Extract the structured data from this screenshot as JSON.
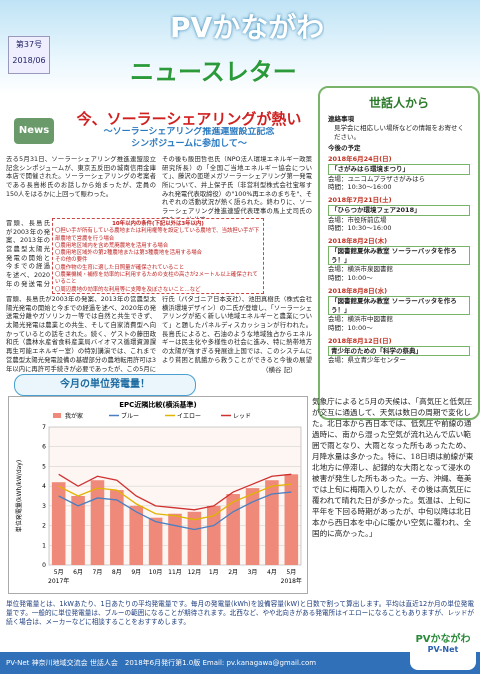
{
  "header": {
    "title": "PVかながわ",
    "issue": "第37号",
    "date": "2018/06",
    "subtitle": "ニュースレター"
  },
  "article": {
    "badge": "News",
    "headline": "今、ソーラーシェアリングが熱い",
    "subheadline": [
      "～ソーラーシェアリング推進連盟設立記念",
      "シンポジュームに参加して～"
    ],
    "col1": "去る5月31日、ソーラーシェアリング推進連盟設立記念シンポジュームが、東京五反田の城南信用金庫本店で開催された。ソーラーシェアリングの考案者である長島彬氏のお話しから始まったが、定員の150人をはるかに上回って賑わった。",
    "col2": "その後も飯田哲也氏（NPO法人環境エネルギー政策研究所長）の「全国ご当地エネルギー協会について」、藤沢の匝瑳メガソーラーシェアリング第一発電所について、井上保子氏（非営利型株式会社宝塚すみれ発電代表取締役）の\"100%再エネのまちを\"、それぞれの活動状況が熱く語られた。終わりに、ソーラーシェアリング推進連盟代表理事の馬上丈司氏の閉会で、辻井隆",
    "col3": "冒頭、長島氏が2003年の発案、2013年の営農型太陽光発電の開始と今までの経過を述べ、2020年の発送電分離やガソリンカー等では自然と共生できず、太陽光発電は農業との共生、そして自家消費型へ向かっているとの話をされた。続く、ゲストの藤田政和氏（農林水産省食料産業局バイオマス循環資源課再生可能エネルギー室）の特別講演では、これまで営農型太陽光発電設備の基礎部分の農地転用許可は3年以内に再許可手続きが必要であったが、この5月に従来要件に加え、一定条件（表参照）を満たせば10年以内へと大幅に緩和された旨の話があった。",
    "col4": "行氏（パタゴニア日本支社）、池田真樹氏（株式会社横浜環境デザイン）の二氏が登壇し、「ソーラーシェアリングが拓く新しい地域エネルギーと農業について」と題したパネルディスカッションが行われた。長島氏によると、石油のような地域独占からエネルギーは民主化や多様性の社会に進み、特に熱帯地方の太陽が強すぎる発展途上国では、このシステムにより貧困と飢餓から救うことができると今後の展望が語られた。",
    "signature": "（横谷 記）",
    "box": {
      "title": "10年以内の条件(下記以外は3年以内)",
      "items": [
        "〇担い手が所有している農地または利用権等を設定している農地で、当該担い手が下部農地で営農を行う場合",
        "〇農用地区域内を含め荒廃農地を活用する場合",
        "〇農用地区域外の第2種農地または第3種農地を活用する場合",
        "その他の要件",
        "〇農作物の生育に適した日照量が確保されていること",
        "〇農業機械・補修を効率的に利用するための支柱の高さが2メートル以上確保されていること",
        "〇周辺農地の効率的な利用等に支障を及ぼさないこと…など"
      ]
    }
  },
  "sidebar": {
    "title": "世話人から",
    "notice_title": "連絡事項",
    "notice": "見学会に相応しい場所などの情報をお寄せください。",
    "schedule_title": "今後の予定",
    "events": [
      {
        "date": "2018年6月24日(日)",
        "name": "「さがみはら環境まつり」",
        "place": "会場：ユニコムプラザさがみはら",
        "time": "時間：10:30～16:00"
      },
      {
        "date": "2018年7月21日(土)",
        "name": "「ひらつか環境フェア2018」",
        "place": "会場：市役所前広場",
        "time": "時間：10:30～16:00"
      },
      {
        "date": "2018年8月2日(木)",
        "name": "「図書館夏休み教室 ソーラーバッタを作ろう！」",
        "place": "会場：横浜市泉図書館",
        "time": "時間：10:00～"
      },
      {
        "date": "2018年8月8日(水)",
        "name": "「図書館夏休み教室 ソーラーバッタを作ろう！」",
        "place": "会場：横浜市中図書館",
        "time": "時間：10:00～"
      },
      {
        "date": "2018年8月12日(日)",
        "name": "青少年のための「科学の祭典」",
        "place": "会場：県立青少年センター"
      }
    ]
  },
  "monthly": {
    "heading": "今月の単位発電量！",
    "commentary": "気象庁によると5月の天候は、「高気圧と低気圧が交互に通過して、天気は数日の周期で変化した。北日本から西日本では、低気圧や前線の通過時に、南から湿った空気が流れ込んで広い範囲で雨となり、大雨となった所もあったため、月降水量は多かった。特に、18日頃は前線が東北地方に停滞し、記録的な大雨となって浸水の被害が発生した所もあった。一方、沖縄、奄美では上旬に梅雨入りしたが、その後は高気圧に覆われて晴れた日が多かった。気温は、上旬に平年を下回る時期があったが、中旬以降は北日本から西日本を中心に暖かい空気に覆われ、全国的に高かった。」",
    "footnote": "単位発電量とは、1kWあたり、1日あたりの平均発電量です。毎月の発電量(kWh)を設備容量(kW)と日数で割って算出します。平均は直近12か月の単位発電量です。一般的に単位発電量は、ブルーの範囲になることが期待されます。北西など、やや北向きがある発電所はイエローになることもありますが、レッドが続く場合は、メーカーなどに相談することをおすすめします。"
  },
  "chart_data": {
    "type": "bar",
    "title": "EPC近隣比較(横浜基準)",
    "y_label": "単位発電量(kWh/kW/day)",
    "categories": [
      "5月",
      "6月",
      "7月",
      "8月",
      "9月",
      "10月",
      "11月",
      "12月",
      "1月",
      "2月",
      "3月",
      "4月",
      "5月"
    ],
    "year_labels": [
      "2017年",
      "2018年"
    ],
    "ylim": [
      0,
      7
    ],
    "yticks": [
      0,
      1,
      2,
      3,
      4,
      5,
      6,
      7
    ],
    "grid": true,
    "series": [
      {
        "name": "我が家",
        "color": "#ef8a7a",
        "values": [
          4.2,
          3.5,
          4.3,
          3.8,
          3.0,
          2.4,
          2.6,
          2.7,
          3.0,
          3.6,
          3.9,
          4.3,
          4.6
        ]
      },
      {
        "name": "ブルー",
        "color": "#4a7fc1",
        "values": [
          3.5,
          3.0,
          3.4,
          3.3,
          2.7,
          2.2,
          2.0,
          1.8,
          2.0,
          2.7,
          3.2,
          3.6,
          3.7
        ]
      },
      {
        "name": "イエロー",
        "color": "#e0b400",
        "values": [
          4.0,
          3.5,
          3.9,
          3.8,
          3.1,
          2.6,
          2.5,
          2.3,
          2.5,
          3.2,
          3.6,
          4.0,
          4.1
        ]
      },
      {
        "name": "レッド",
        "color": "#d03030",
        "values": [
          4.6,
          4.0,
          4.5,
          4.3,
          3.5,
          3.0,
          2.9,
          2.8,
          3.0,
          3.7,
          4.1,
          4.5,
          4.6
        ]
      }
    ]
  },
  "footer": {
    "text": "PV-Net 神奈川地域交流会 世話人会　2018年6月発行第1.0版 Email: pv.kanagawa@gmail.com",
    "logo": "PVかながわ",
    "logo_sub": "PV-Net"
  }
}
